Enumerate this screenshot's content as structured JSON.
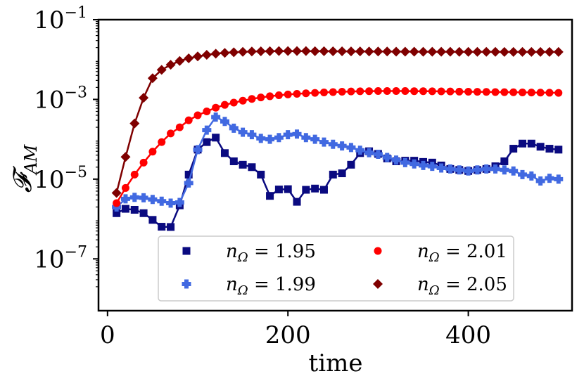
{
  "chart_data": {
    "type": "line",
    "xlabel": "time",
    "ylabel": "𝓕",
    "ylabel_sub": "AM",
    "xlim": [
      -10,
      515
    ],
    "ylim_log10": [
      -8.3,
      -1
    ],
    "xticks": [
      0,
      200,
      400
    ],
    "xtick_labels": [
      "0",
      "200",
      "400"
    ],
    "yticks_log10": [
      -7,
      -5,
      -3,
      -1
    ],
    "ytick_base": "10",
    "ytick_exponents": [
      "−7",
      "−5",
      "−3",
      "−1"
    ],
    "legend_position": "lower-center",
    "series": [
      {
        "name": "nΩ = 1.95",
        "legend_prefix": "n",
        "legend_sub": "Ω",
        "legend_value": " = 1.95",
        "color": "#0a0a80",
        "marker": "square",
        "x": [
          10,
          20,
          30,
          40,
          50,
          60,
          70,
          80,
          90,
          100,
          110,
          120,
          130,
          140,
          150,
          160,
          170,
          180,
          190,
          200,
          210,
          220,
          230,
          240,
          250,
          260,
          270,
          280,
          290,
          300,
          310,
          320,
          330,
          340,
          350,
          360,
          370,
          380,
          390,
          400,
          410,
          420,
          430,
          440,
          450,
          460,
          470,
          480,
          490,
          500
        ],
        "y": [
          1.4e-06,
          1.8e-06,
          1.7e-06,
          1.4e-06,
          9.5e-07,
          6.4e-07,
          6.3e-07,
          2.2e-06,
          1.3e-05,
          5.5e-05,
          8.5e-05,
          0.00011,
          4.5e-05,
          2.8e-05,
          2.3e-05,
          2e-05,
          1.3e-05,
          3.8e-06,
          5.5e-06,
          5.6e-06,
          2.7e-06,
          5.4e-06,
          5.8e-06,
          5.4e-06,
          1.3e-05,
          1.4e-05,
          2.3e-05,
          4.5e-05,
          5e-05,
          4.3e-05,
          3.3e-05,
          2.8e-05,
          2.9e-05,
          2.9e-05,
          2.7e-05,
          2.6e-05,
          2.2e-05,
          1.8e-05,
          1.7e-05,
          1.6e-05,
          1.7e-05,
          1.8e-05,
          2.1e-05,
          2.8e-05,
          5.8e-05,
          7.8e-05,
          7.8e-05,
          6.5e-05,
          5.8e-05,
          5.5e-05
        ]
      },
      {
        "name": "nΩ = 1.99",
        "legend_prefix": "n",
        "legend_sub": "Ω",
        "legend_value": " = 1.99",
        "color": "#4169e1",
        "marker": "plus",
        "x": [
          10,
          20,
          30,
          40,
          50,
          60,
          70,
          80,
          90,
          100,
          110,
          120,
          130,
          140,
          150,
          160,
          170,
          180,
          190,
          200,
          210,
          220,
          230,
          240,
          250,
          260,
          270,
          280,
          290,
          300,
          310,
          320,
          330,
          340,
          350,
          360,
          370,
          380,
          390,
          400,
          410,
          420,
          430,
          440,
          450,
          460,
          470,
          480,
          490,
          500
        ],
        "y": [
          2e-06,
          3.2e-06,
          3.5e-06,
          3.4e-06,
          3.1e-06,
          2.8e-06,
          2.5e-06,
          2.6e-06,
          8e-06,
          5.5e-05,
          0.00017,
          0.00036,
          0.00028,
          0.00019,
          0.00015,
          0.00013,
          0.000105,
          0.0001,
          0.00011,
          0.00013,
          0.000135,
          0.00011,
          0.0001,
          8.5e-05,
          7.5e-05,
          6.8e-05,
          6.2e-05,
          5.3e-05,
          4.6e-05,
          4.2e-05,
          3.5e-05,
          3e-05,
          2.6e-05,
          2.4e-05,
          2.2e-05,
          2.1e-05,
          1.9e-05,
          1.8e-05,
          1.7e-05,
          1.6e-05,
          1.7e-05,
          1.8e-05,
          1.8e-05,
          1.7e-05,
          1.6e-05,
          1.3e-05,
          1.2e-05,
          9e-06,
          1.05e-05,
          1e-05
        ]
      },
      {
        "name": "nΩ = 2.01",
        "legend_prefix": "n",
        "legend_sub": "Ω",
        "legend_value": " = 2.01",
        "color": "#ff0000",
        "marker": "circle",
        "x": [
          10,
          20,
          30,
          40,
          50,
          60,
          70,
          80,
          90,
          100,
          110,
          120,
          130,
          140,
          150,
          160,
          170,
          180,
          190,
          200,
          210,
          220,
          230,
          240,
          250,
          260,
          270,
          280,
          290,
          300,
          310,
          320,
          330,
          340,
          350,
          360,
          370,
          380,
          390,
          400,
          410,
          420,
          430,
          440,
          450,
          460,
          470,
          480,
          490,
          500
        ],
        "y": [
          2.5e-06,
          6e-06,
          1.3e-05,
          2.6e-05,
          4.9e-05,
          8.5e-05,
          0.00014,
          0.0002,
          0.0003,
          0.0004,
          0.0005,
          0.00062,
          0.00073,
          0.00083,
          0.00093,
          0.00103,
          0.00112,
          0.0012,
          0.00127,
          0.00133,
          0.00138,
          0.00142,
          0.00146,
          0.0015,
          0.00153,
          0.00156,
          0.00158,
          0.0016,
          0.00161,
          0.00162,
          0.00162,
          0.00162,
          0.00162,
          0.00161,
          0.00161,
          0.0016,
          0.00159,
          0.00158,
          0.00157,
          0.00156,
          0.00155,
          0.00154,
          0.00153,
          0.00152,
          0.00151,
          0.0015,
          0.00149,
          0.00148,
          0.00147,
          0.00146
        ]
      },
      {
        "name": "nΩ = 2.05",
        "legend_prefix": "n",
        "legend_sub": "Ω",
        "legend_value": " = 2.05",
        "color": "#7f0000",
        "marker": "diamond",
        "x": [
          10,
          20,
          30,
          40,
          50,
          60,
          70,
          80,
          90,
          100,
          110,
          120,
          130,
          140,
          150,
          160,
          170,
          180,
          190,
          200,
          210,
          220,
          230,
          240,
          250,
          260,
          270,
          280,
          290,
          300,
          310,
          320,
          330,
          340,
          350,
          360,
          370,
          380,
          390,
          400,
          410,
          420,
          430,
          440,
          450,
          460,
          470,
          480,
          490,
          500
        ],
        "y": [
          4.5e-06,
          3.6e-05,
          0.00025,
          0.0011,
          0.0034,
          0.0055,
          0.0074,
          0.0092,
          0.0107,
          0.012,
          0.0131,
          0.014,
          0.0147,
          0.0152,
          0.0156,
          0.0159,
          0.0161,
          0.0162,
          0.0163,
          0.0163,
          0.0163,
          0.0163,
          0.0162,
          0.0162,
          0.0161,
          0.0161,
          0.016,
          0.016,
          0.0159,
          0.0159,
          0.0159,
          0.0158,
          0.0158,
          0.0158,
          0.0157,
          0.0157,
          0.0157,
          0.0157,
          0.0156,
          0.0156,
          0.0156,
          0.0156,
          0.0156,
          0.0155,
          0.0155,
          0.0155,
          0.0155,
          0.0155,
          0.0155,
          0.0155
        ]
      }
    ]
  }
}
